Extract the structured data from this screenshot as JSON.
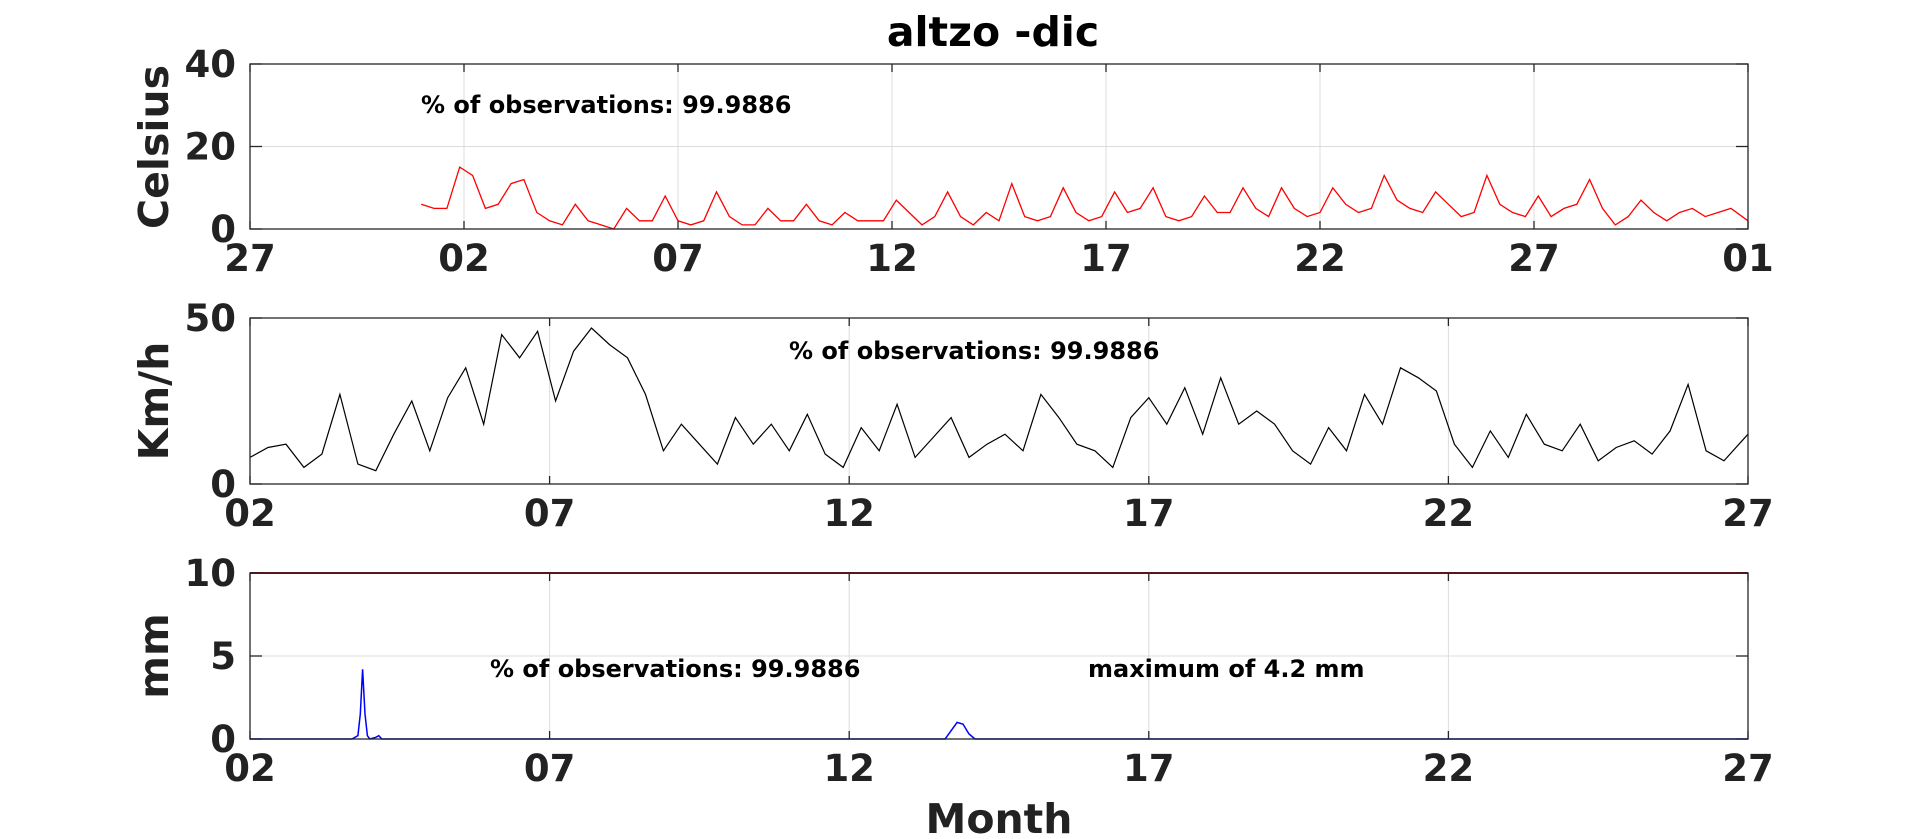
{
  "colors": {
    "temperature": "#ff0000",
    "wind": "#000000",
    "precipitation": "#0000ff",
    "threshold": "#b00000"
  },
  "chart_data": [
    {
      "type": "line",
      "title": "altzo -dic",
      "ylabel": "Celsius",
      "xlabel": "",
      "x_tick_labels": [
        "27",
        "02",
        "07",
        "12",
        "17",
        "22",
        "27",
        "01"
      ],
      "xlim": [
        0,
        35
      ],
      "ylim": [
        0,
        40
      ],
      "y_ticks": [
        0,
        20,
        40
      ],
      "grid": true,
      "annotations": [
        "% of observations: 99.9886"
      ],
      "series": [
        {
          "x": [
            4,
            4.3,
            4.6,
            4.9,
            5.2,
            5.5,
            5.8,
            6.1,
            6.4,
            6.7,
            7.0,
            7.3,
            7.6,
            7.9,
            8.2,
            8.5,
            8.8,
            9.1,
            9.4,
            9.7,
            10.0,
            10.3,
            10.6,
            10.9,
            11.2,
            11.5,
            11.8,
            12.1,
            12.4,
            12.7,
            13.0,
            13.3,
            13.6,
            13.9,
            14.2,
            14.5,
            14.8,
            15.1,
            15.4,
            15.7,
            16.0,
            16.3,
            16.6,
            16.9,
            17.2,
            17.5,
            17.8,
            18.1,
            18.4,
            18.7,
            19.0,
            19.3,
            19.6,
            19.9,
            20.2,
            20.5,
            20.8,
            21.1,
            21.4,
            21.7,
            22.0,
            22.3,
            22.6,
            22.9,
            23.2,
            23.5,
            23.8,
            24.1,
            24.4,
            24.7,
            25.0,
            25.3,
            25.6,
            25.9,
            26.2,
            26.5,
            26.8,
            27.1,
            27.4,
            27.7,
            28.0,
            28.3,
            28.6,
            28.9,
            29.2,
            29.5,
            29.8,
            30.1,
            30.4,
            30.7,
            31.0,
            31.3,
            31.6,
            31.9,
            32.2,
            32.5,
            32.8,
            33.1,
            33.4,
            33.7,
            34.0,
            34.3,
            34.6,
            35.0
          ],
          "values": [
            6,
            5,
            5,
            15,
            13,
            5,
            6,
            11,
            12,
            4,
            2,
            1,
            6,
            2,
            1,
            0,
            5,
            2,
            2,
            8,
            2,
            1,
            2,
            9,
            3,
            1,
            1,
            5,
            2,
            2,
            6,
            2,
            1,
            4,
            2,
            2,
            2,
            7,
            4,
            1,
            3,
            9,
            3,
            1,
            4,
            2,
            11,
            3,
            2,
            3,
            10,
            4,
            2,
            3,
            9,
            4,
            5,
            10,
            3,
            2,
            3,
            8,
            4,
            4,
            10,
            5,
            3,
            10,
            5,
            3,
            4,
            10,
            6,
            4,
            5,
            13,
            7,
            5,
            4,
            9,
            6,
            3,
            4,
            13,
            6,
            4,
            3,
            8,
            3,
            5,
            6,
            12,
            5,
            1,
            3,
            7,
            4,
            2,
            4,
            5,
            3,
            4,
            5,
            2
          ]
        }
      ]
    },
    {
      "type": "line",
      "title": "",
      "ylabel": "Km/h",
      "xlabel": "",
      "x_tick_labels": [
        "02",
        "07",
        "12",
        "17",
        "22",
        "27"
      ],
      "xlim": [
        0,
        25
      ],
      "ylim": [
        0,
        50
      ],
      "y_ticks": [
        0,
        50
      ],
      "grid": true,
      "annotations": [
        "% of observations: 99.9886"
      ],
      "series": [
        {
          "x": [
            0,
            0.3,
            0.6,
            0.9,
            1.2,
            1.5,
            1.8,
            2.1,
            2.4,
            2.7,
            3.0,
            3.3,
            3.6,
            3.9,
            4.2,
            4.5,
            4.8,
            5.1,
            5.4,
            5.7,
            6.0,
            6.3,
            6.6,
            6.9,
            7.2,
            7.5,
            7.8,
            8.1,
            8.4,
            8.7,
            9.0,
            9.3,
            9.6,
            9.9,
            10.2,
            10.5,
            10.8,
            11.1,
            11.4,
            11.7,
            12.0,
            12.3,
            12.6,
            12.9,
            13.2,
            13.5,
            13.8,
            14.1,
            14.4,
            14.7,
            15.0,
            15.3,
            15.6,
            15.9,
            16.2,
            16.5,
            16.8,
            17.1,
            17.4,
            17.7,
            18.0,
            18.3,
            18.6,
            18.9,
            19.2,
            19.5,
            19.8,
            20.1,
            20.4,
            20.7,
            21.0,
            21.3,
            21.6,
            21.9,
            22.2,
            22.5,
            22.8,
            23.1,
            23.4,
            23.7,
            24.0,
            24.3,
            24.6,
            25.0
          ],
          "values": [
            8,
            11,
            12,
            5,
            9,
            27,
            6,
            4,
            15,
            25,
            10,
            26,
            35,
            18,
            45,
            38,
            46,
            25,
            40,
            47,
            42,
            38,
            27,
            10,
            18,
            12,
            6,
            20,
            12,
            18,
            10,
            21,
            9,
            5,
            17,
            10,
            24,
            8,
            14,
            20,
            8,
            12,
            15,
            10,
            27,
            20,
            12,
            10,
            5,
            20,
            26,
            18,
            29,
            15,
            32,
            18,
            22,
            18,
            10,
            6,
            17,
            10,
            27,
            18,
            35,
            32,
            28,
            12,
            5,
            16,
            8,
            21,
            12,
            10,
            18,
            7,
            11,
            13,
            9,
            16,
            30,
            10,
            7,
            15
          ]
        }
      ]
    },
    {
      "type": "line",
      "title": "",
      "ylabel": "mm",
      "xlabel": "Month",
      "x_tick_labels": [
        "02",
        "07",
        "12",
        "17",
        "22",
        "27"
      ],
      "xlim": [
        0,
        25
      ],
      "ylim": [
        0,
        10
      ],
      "y_ticks": [
        0,
        5,
        10
      ],
      "grid": true,
      "annotations": [
        "% of observations: 99.9886",
        "maximum of 4.2 mm"
      ],
      "threshold": 10,
      "series": [
        {
          "x": [
            0,
            1.7,
            1.8,
            1.84,
            1.88,
            1.92,
            1.96,
            2.0,
            2.1,
            2.15,
            2.2,
            2.3,
            11.6,
            11.7,
            11.8,
            11.9,
            12.0,
            12.1,
            25.0
          ],
          "values": [
            0,
            0,
            0.2,
            1.5,
            4.2,
            1.5,
            0.2,
            0,
            0.1,
            0.2,
            0,
            0,
            0,
            0.5,
            1.0,
            0.9,
            0.3,
            0,
            0
          ]
        }
      ]
    }
  ]
}
